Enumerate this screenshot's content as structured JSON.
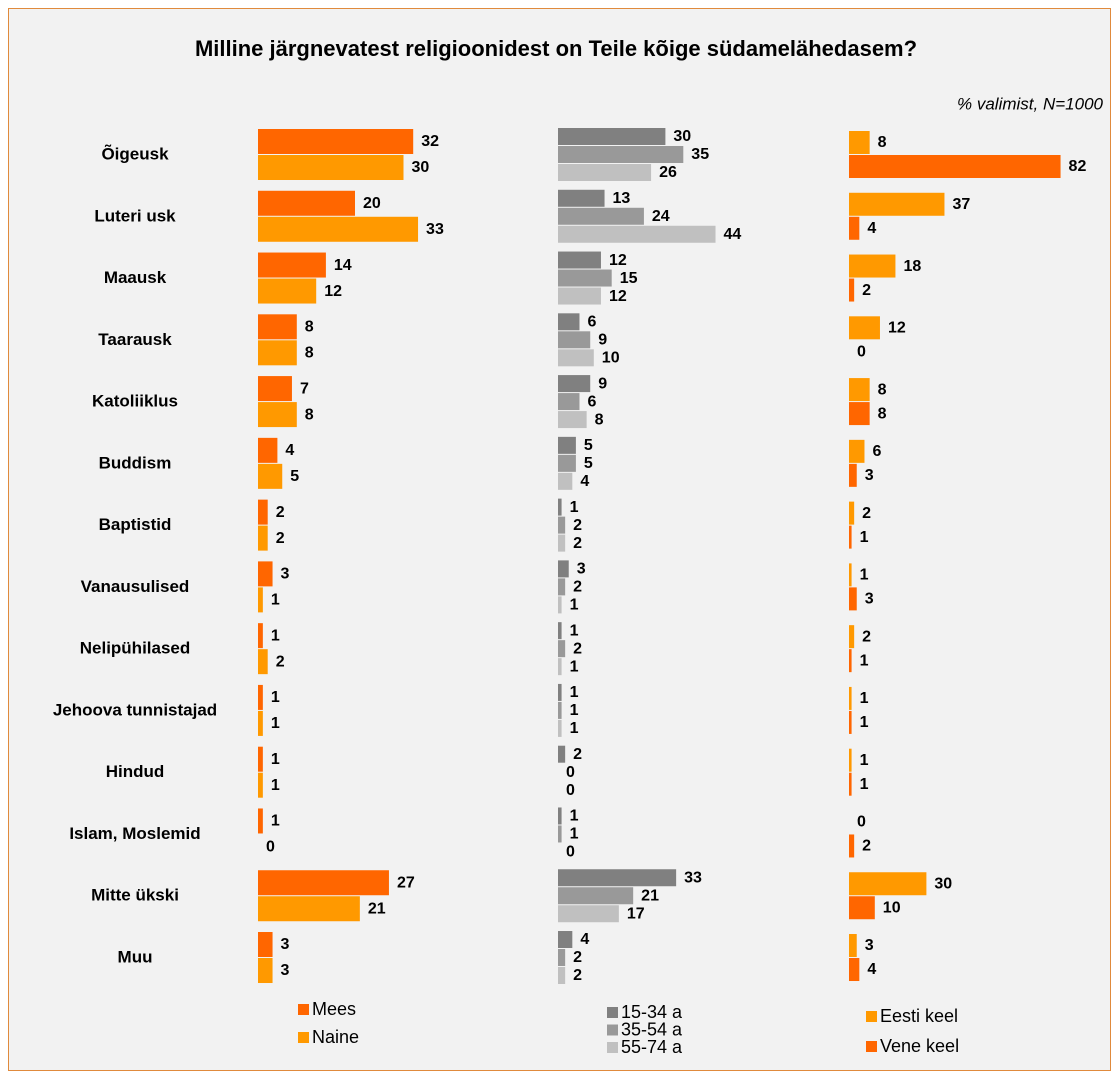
{
  "chart_data": [
    {
      "type": "bar",
      "title": "Milline järgnevatest religioonidest on Teile kõige südamelähedasem?",
      "subtitle": "% valimist, N=1000",
      "categories": [
        "Õigeusk",
        "Luteri usk",
        "Maausk",
        "Taarausk",
        "Katoliiklus",
        "Buddism",
        "Baptistid",
        "Vanausulised",
        "Nelipühilased",
        "Jehoova tunnistajad",
        "Hindud",
        "Islam, Moslemid",
        "Mitte ükski",
        "Muu"
      ],
      "series": [
        {
          "name": "Mees",
          "color": "#ff6600",
          "values": [
            32,
            20,
            14,
            8,
            7,
            4,
            2,
            3,
            1,
            1,
            1,
            1,
            27,
            3
          ]
        },
        {
          "name": "Naine",
          "color": "#ff9900",
          "values": [
            30,
            33,
            12,
            8,
            8,
            5,
            2,
            1,
            2,
            1,
            1,
            0,
            21,
            3
          ]
        }
      ]
    },
    {
      "type": "bar",
      "series": [
        {
          "name": "15-34 a",
          "color": "#808080",
          "values": [
            30,
            13,
            12,
            6,
            9,
            5,
            1,
            3,
            1,
            1,
            2,
            1,
            33,
            4
          ]
        },
        {
          "name": "35-54 a",
          "color": "#999999",
          "values": [
            35,
            24,
            15,
            9,
            6,
            5,
            2,
            2,
            2,
            1,
            0,
            1,
            21,
            2
          ]
        },
        {
          "name": "55-74 a",
          "color": "#c0c0c0",
          "values": [
            26,
            44,
            12,
            10,
            8,
            4,
            2,
            1,
            1,
            1,
            0,
            0,
            17,
            2
          ]
        }
      ]
    },
    {
      "type": "bar",
      "series": [
        {
          "name": "Eesti keel",
          "color": "#ff9900",
          "values": [
            8,
            37,
            18,
            12,
            8,
            6,
            2,
            1,
            2,
            1,
            1,
            0,
            30,
            3
          ]
        },
        {
          "name": "Vene keel",
          "color": "#ff6600",
          "values": [
            82,
            4,
            2,
            0,
            8,
            3,
            1,
            3,
            1,
            1,
            1,
            2,
            10,
            4
          ]
        }
      ]
    }
  ]
}
